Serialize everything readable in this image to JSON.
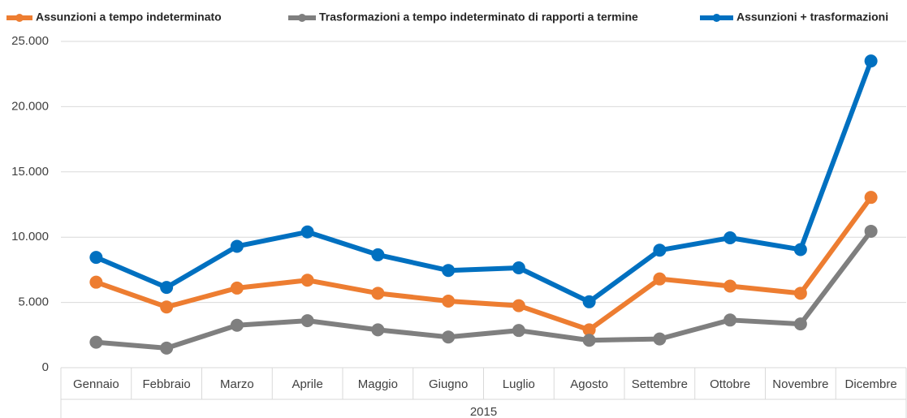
{
  "chart_data": {
    "type": "line",
    "categories": [
      "Gennaio",
      "Febbraio",
      "Marzo",
      "Aprile",
      "Maggio",
      "Giugno",
      "Luglio",
      "Agosto",
      "Settembre",
      "Ottobre",
      "Novembre",
      "Dicembre"
    ],
    "group": "2015",
    "series": [
      {
        "name": "Assunzioni a tempo indeterminato",
        "color": "#ed7d31",
        "values": [
          6550,
          4650,
          6100,
          6700,
          5700,
          5100,
          4750,
          2900,
          6800,
          6250,
          5700,
          13050
        ]
      },
      {
        "name": "Trasformazioni a tempo indeterminato di rapporti a termine",
        "color": "#7f7f7f",
        "values": [
          1950,
          1500,
          3250,
          3600,
          2900,
          2350,
          2850,
          2100,
          2200,
          3650,
          3350,
          10450
        ]
      },
      {
        "name": "Assunzioni + trasformazioni",
        "color": "#0070c0",
        "values": [
          8450,
          6150,
          9300,
          10400,
          8650,
          7450,
          7650,
          5050,
          9000,
          9950,
          9050,
          23500
        ]
      }
    ],
    "ylim": [
      0,
      25000
    ],
    "yticks": [
      0,
      {
        "value": 5000,
        "label": "5.000"
      },
      {
        "value": 10000,
        "label": "10.000"
      },
      {
        "value": 15000,
        "label": "15.000"
      },
      {
        "value": 20000,
        "label": "20.000"
      },
      {
        "value": 25000,
        "label": "25.000"
      }
    ],
    "grid": true,
    "legend": "top"
  }
}
